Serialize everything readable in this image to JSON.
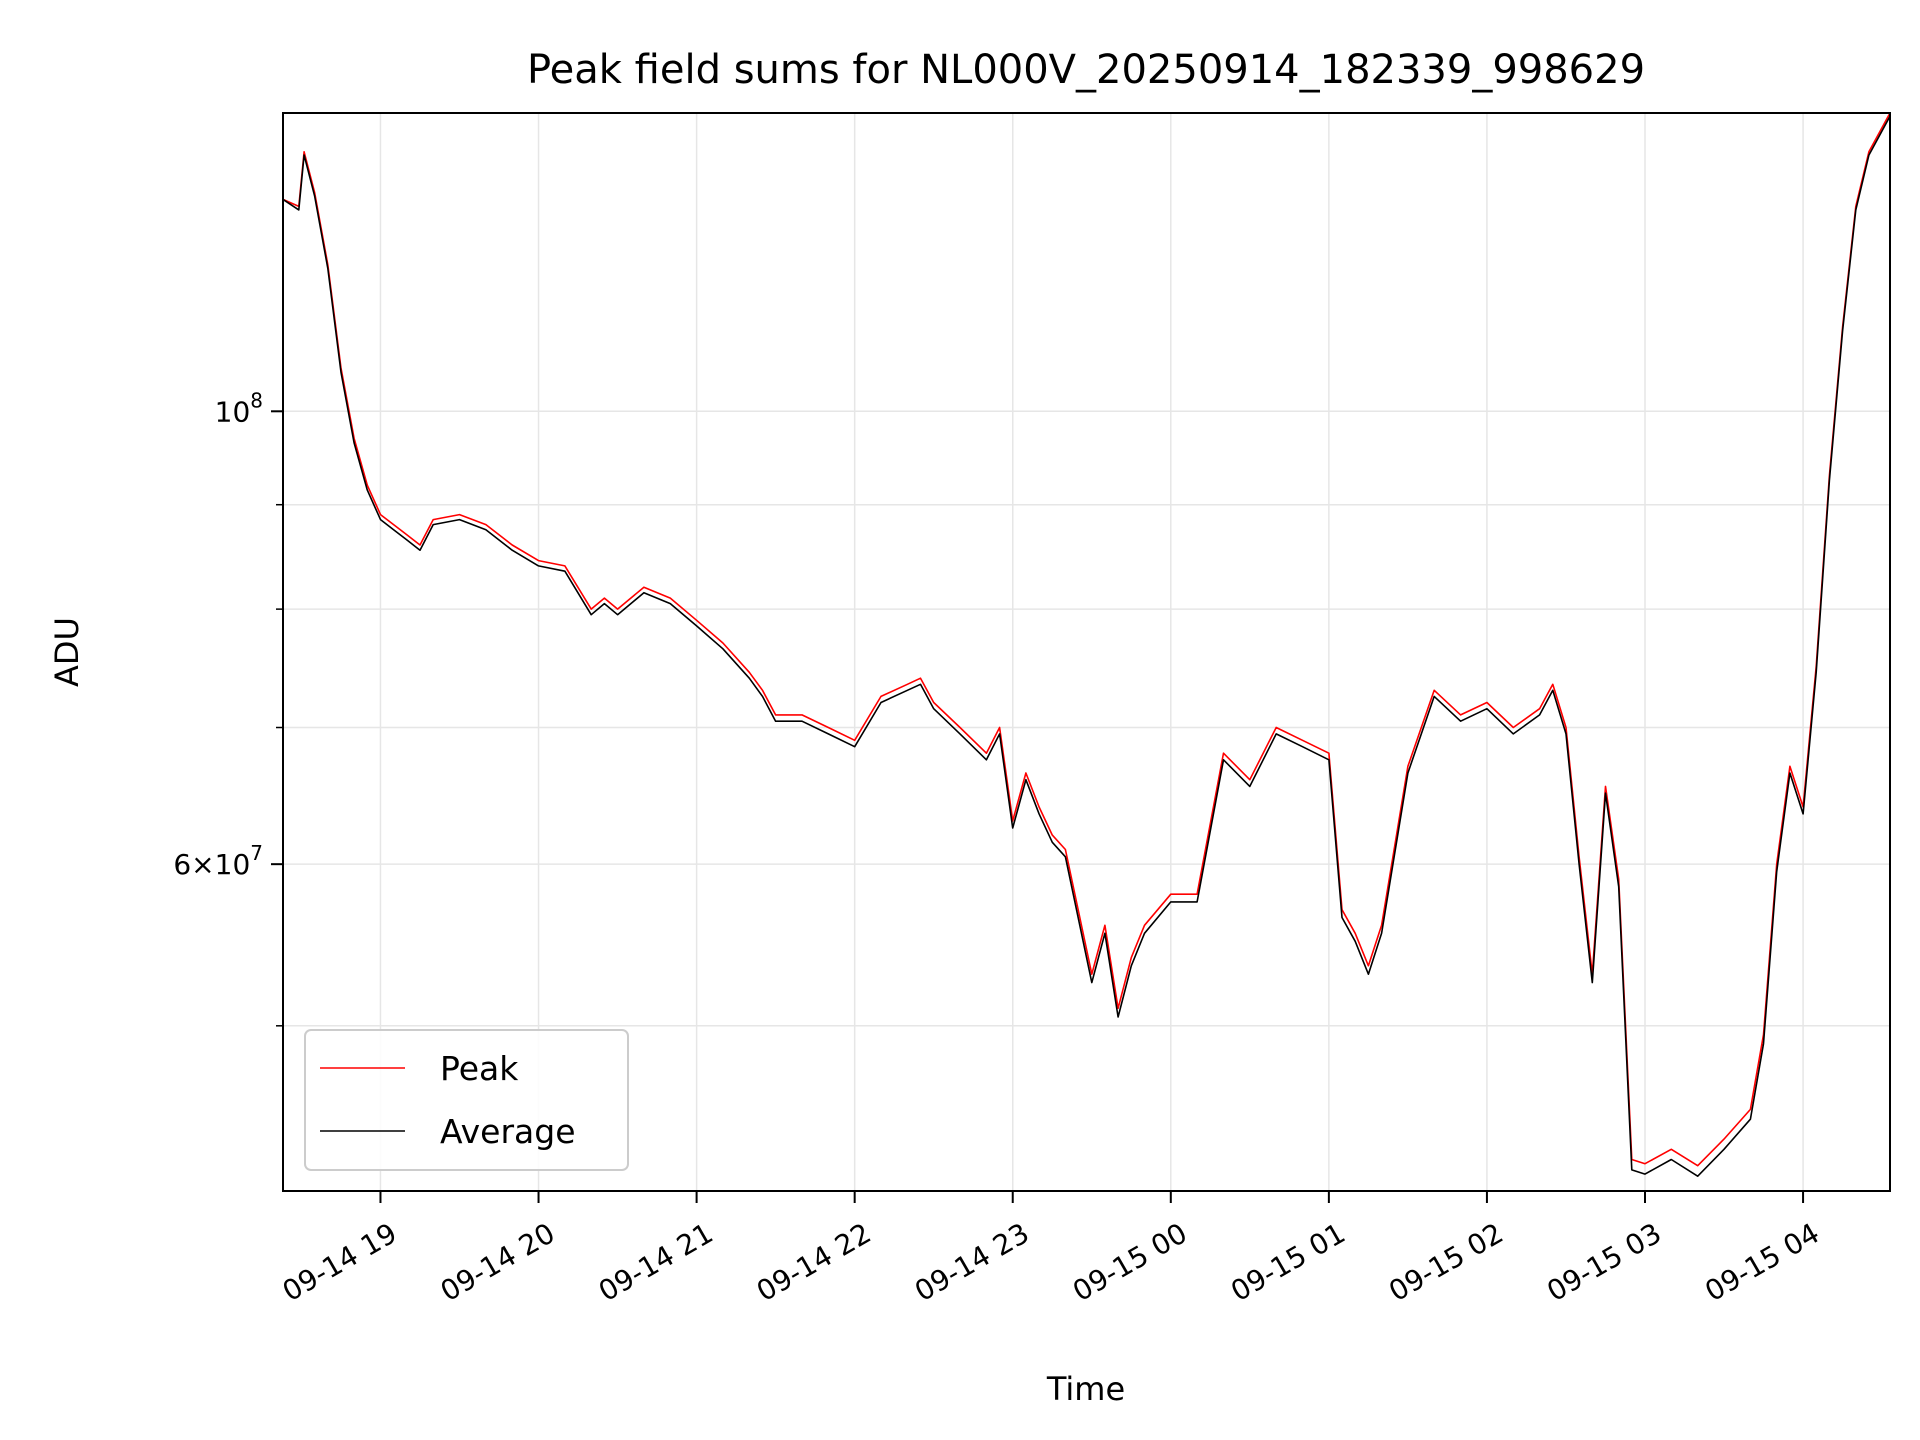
{
  "chart_data": {
    "type": "line",
    "title": "Peak field sums for NL000V_20250914_182339_998629",
    "xlabel": "Time",
    "ylabel": "ADU",
    "xscale": "time",
    "xlim": [
      "2025-09-14 18:23",
      "2025-09-15 04:33"
    ],
    "yscale": "log",
    "ylim": [
      41500000,
      140000000
    ],
    "grid": true,
    "legend_position": "lower-left",
    "x_ticks": [
      "09-14 19",
      "09-14 20",
      "09-14 21",
      "09-14 22",
      "09-14 23",
      "09-15 00",
      "09-15 01",
      "09-15 02",
      "09-15 03",
      "09-15 04"
    ],
    "y_major_ticks": [
      {
        "value": 100000000,
        "base": "10",
        "exp": "8"
      },
      {
        "value": 60000000,
        "mant": "6",
        "base": "10",
        "exp": "7"
      }
    ],
    "y_minor_ticks": [
      50000000,
      70000000,
      80000000,
      90000000
    ],
    "x": [
      "18:23",
      "18:29",
      "18:31",
      "18:35",
      "18:40",
      "18:45",
      "18:50",
      "18:55",
      "19:00",
      "19:05",
      "19:10",
      "19:15",
      "19:20",
      "19:30",
      "19:40",
      "19:50",
      "20:00",
      "20:10",
      "20:20",
      "20:25",
      "20:30",
      "20:40",
      "20:50",
      "21:00",
      "21:10",
      "21:20",
      "21:25",
      "21:30",
      "21:40",
      "21:50",
      "22:00",
      "22:10",
      "22:20",
      "22:25",
      "22:30",
      "22:40",
      "22:50",
      "22:55",
      "23:00",
      "23:05",
      "23:10",
      "23:15",
      "23:20",
      "23:30",
      "23:35",
      "23:40",
      "23:45",
      "23:50",
      "00:00",
      "00:10",
      "00:20",
      "00:30",
      "00:40",
      "00:50",
      "01:00",
      "01:05",
      "01:10",
      "01:15",
      "01:20",
      "01:30",
      "01:40",
      "01:50",
      "02:00",
      "02:10",
      "02:20",
      "02:25",
      "02:30",
      "02:35",
      "02:40",
      "02:45",
      "02:50",
      "02:55",
      "03:00",
      "03:10",
      "03:20",
      "03:30",
      "03:40",
      "03:45",
      "03:50",
      "03:55",
      "04:00",
      "04:05",
      "04:10",
      "04:15",
      "04:20",
      "04:25",
      "04:33"
    ],
    "series": [
      {
        "name": "Peak",
        "color": "#ff0000",
        "values": [
          127000000,
          126000000,
          134000000,
          128000000,
          118000000,
          105000000,
          97000000,
          92000000,
          89000000,
          88000000,
          87000000,
          86000000,
          88500000,
          89000000,
          88000000,
          86000000,
          84500000,
          84000000,
          80000000,
          81000000,
          80000000,
          82000000,
          81000000,
          79000000,
          77000000,
          74500000,
          73000000,
          71000000,
          71000000,
          70000000,
          69000000,
          72500000,
          73500000,
          74000000,
          72000000,
          70000000,
          68000000,
          70000000,
          63000000,
          66500000,
          64000000,
          62000000,
          61000000,
          53000000,
          56000000,
          51000000,
          54000000,
          56000000,
          58000000,
          58000000,
          68000000,
          66000000,
          70000000,
          69000000,
          68000000,
          57000000,
          55500000,
          53500000,
          56000000,
          67000000,
          73000000,
          71000000,
          72000000,
          70000000,
          71500000,
          73500000,
          70000000,
          60500000,
          53000000,
          65500000,
          59000000,
          43000000,
          42800000,
          43500000,
          42700000,
          44000000,
          45500000,
          49500000,
          60000000,
          67000000,
          64000000,
          75000000,
          93000000,
          110000000,
          126000000,
          134000000,
          140000000
        ]
      },
      {
        "name": "Average",
        "color": "#000000",
        "values": [
          127000000,
          125500000,
          133500000,
          127500000,
          117500000,
          104500000,
          96500000,
          91500000,
          88500000,
          87500000,
          86500000,
          85500000,
          88000000,
          88500000,
          87500000,
          85500000,
          84000000,
          83500000,
          79500000,
          80500000,
          79500000,
          81500000,
          80500000,
          78500000,
          76500000,
          74000000,
          72500000,
          70500000,
          70500000,
          69500000,
          68500000,
          72000000,
          73000000,
          73500000,
          71500000,
          69500000,
          67500000,
          69500000,
          62500000,
          66000000,
          63500000,
          61500000,
          60500000,
          52500000,
          55500000,
          50500000,
          53500000,
          55500000,
          57500000,
          57500000,
          67500000,
          65500000,
          69500000,
          68500000,
          67500000,
          56500000,
          55000000,
          53000000,
          55500000,
          66500000,
          72500000,
          70500000,
          71500000,
          69500000,
          71000000,
          73000000,
          69500000,
          60000000,
          52500000,
          65000000,
          58500000,
          42500000,
          42300000,
          43000000,
          42200000,
          43500000,
          45000000,
          49000000,
          59500000,
          66500000,
          63500000,
          74500000,
          92500000,
          109500000,
          125500000,
          133500000,
          139500000
        ]
      }
    ]
  }
}
